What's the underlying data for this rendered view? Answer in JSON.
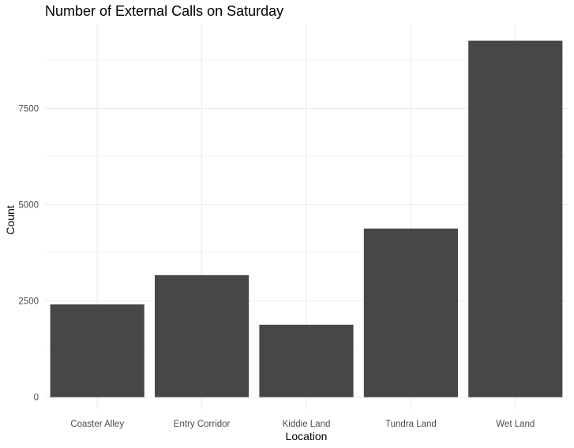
{
  "chart_data": {
    "type": "bar",
    "title": "Number of External Calls on Saturday",
    "xlabel": "Location",
    "ylabel": "Count",
    "categories": [
      "Coaster Alley",
      "Entry Corridor",
      "Kiddie Land",
      "Tundra Land",
      "Wet Land"
    ],
    "values": [
      2410,
      3170,
      1880,
      4380,
      9260
    ],
    "ylim": [
      0,
      9700
    ],
    "yticks": [
      0,
      2500,
      5000,
      7500
    ],
    "ytick_labels": [
      "0",
      "2500",
      "5000",
      "7500"
    ],
    "grid": true,
    "bar_color": "#474747",
    "grid_color": "#ebebeb"
  }
}
